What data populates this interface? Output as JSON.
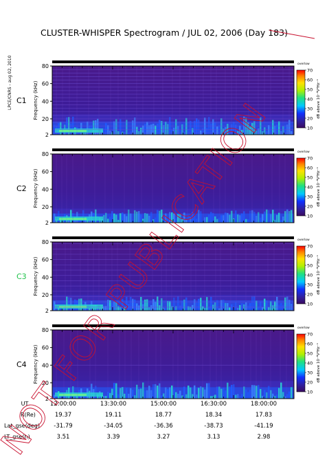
{
  "title": "CLUSTER-WHISPER Spectrogram / JUL 02, 2006 (Day 183)",
  "side_label": "LPCE/CNRS - aug 02, 2010",
  "watermark": "NOT FOR PUBLICATION",
  "colors": {
    "background_low": "#2a0a55",
    "band_mid": "#3d2bb8",
    "band_high": "#1e5cff",
    "emission": "#28d8d0",
    "emission_hot": "#7cfc7c",
    "watermark": "#c8102e",
    "c3_label": "#1fc24a"
  },
  "chart_data": [
    {
      "type": "heatmap",
      "spacecraft": "C1",
      "ylabel": "Frequency (kHz)",
      "yticks": [
        "80",
        "60",
        "40",
        "20",
        "2"
      ],
      "ylim": [
        2,
        80
      ],
      "colorbar_label": "dB above 10⁻⁸V²Hz⁻¹",
      "colorbar_ticks": [
        "70",
        "60",
        "50",
        "40",
        "30",
        "20",
        "10"
      ],
      "colorbar_range": [
        10,
        70
      ],
      "colorbar_tag": "overlow",
      "emission_top_khz": 25,
      "line_khz": [
        4,
        8,
        12,
        16,
        20,
        24,
        28,
        32,
        36,
        40,
        44,
        48,
        52,
        56,
        60,
        64,
        68,
        72,
        76
      ]
    },
    {
      "type": "heatmap",
      "spacecraft": "C2",
      "ylabel": "Frequency (kHz)",
      "yticks": [
        "80",
        "60",
        "40",
        "20",
        "2"
      ],
      "ylim": [
        2,
        80
      ],
      "colorbar_label": "dB above 10⁻⁸V²Hz⁻¹",
      "colorbar_ticks": [
        "70",
        "60",
        "50",
        "40",
        "30",
        "20",
        "10"
      ],
      "colorbar_range": [
        10,
        70
      ],
      "colorbar_tag": "overlow",
      "emission_top_khz": 18,
      "line_khz": []
    },
    {
      "type": "heatmap",
      "spacecraft": "C3",
      "ylabel": "Frequency (kHz)",
      "yticks": [
        "80",
        "60",
        "40",
        "20",
        "2"
      ],
      "ylim": [
        2,
        80
      ],
      "colorbar_label": "dB above 10⁻⁸V²Hz⁻¹",
      "colorbar_ticks": [
        "70",
        "60",
        "50",
        "40",
        "30",
        "20",
        "10"
      ],
      "colorbar_range": [
        10,
        70
      ],
      "colorbar_tag": "overlow",
      "emission_top_khz": 20,
      "line_khz": [
        6,
        12,
        18,
        24,
        30,
        36,
        42,
        48,
        54,
        60,
        66,
        72,
        78
      ]
    },
    {
      "type": "heatmap",
      "spacecraft": "C4",
      "ylabel": "Frequency (kHz)",
      "yticks": [
        "80",
        "60",
        "40",
        "20",
        "2"
      ],
      "ylim": [
        2,
        80
      ],
      "colorbar_label": "dB above 10⁻⁸V²Hz⁻¹",
      "colorbar_ticks": [
        "70",
        "60",
        "50",
        "40",
        "30",
        "20",
        "10"
      ],
      "colorbar_range": [
        10,
        70
      ],
      "colorbar_tag": "overlow",
      "emission_top_khz": 22,
      "line_khz": [
        40
      ]
    }
  ],
  "time_axis": {
    "xlim": [
      "12:00:00",
      "18:00:00"
    ],
    "ticks": [
      "12:00:00",
      "13:30:00",
      "15:00:00",
      "16:30:00",
      "18:00:00"
    ]
  },
  "ephemeris": {
    "rows": [
      {
        "label": "UT",
        "values": [
          "12:00:00",
          "13:30:00",
          "15:00:00",
          "16:30:00",
          "18:00:00"
        ]
      },
      {
        "label": "R(Re)",
        "values": [
          "19.37",
          "19.11",
          "18.77",
          "18.34",
          "17.83"
        ]
      },
      {
        "label": "Lat_gse(deg)",
        "values": [
          "-31.79",
          "-34.05",
          "-36.36",
          "-38.73",
          "-41.19"
        ]
      },
      {
        "label": "LT_gse(h)",
        "values": [
          "3.51",
          "3.39",
          "3.27",
          "3.13",
          "2.98"
        ]
      }
    ]
  }
}
